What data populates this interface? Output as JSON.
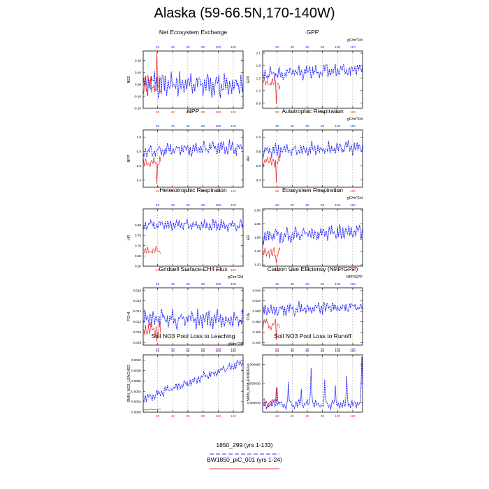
{
  "title": "Alaska (59-66.5N,170-140W)",
  "legend": [
    {
      "label": "1850_299 (yrs 1-133)",
      "color": "#3333ff",
      "dash": true
    },
    {
      "label": "BW1850_piC_001 (yrs 1-24)",
      "color": "#ff3333",
      "dash": false
    }
  ],
  "colors": {
    "series_a": "#1a1aff",
    "series_b": "#ee2222",
    "top_ticks": "#1a1aff",
    "bottom_ticks": "#ee2222",
    "ref_lines": "#999999"
  },
  "chart_data": [
    {
      "type": "line",
      "title": "Net Ecosystem Exchange",
      "units": "",
      "ylabel": "NEE",
      "ylim": [
        -0.2,
        0.28
      ],
      "yticks": [
        0.2,
        0.1,
        0.0,
        -0.1,
        -0.2
      ],
      "ytick_labels": [
        "0.20",
        "0.10",
        "0.00",
        "-0.10",
        "-0.20"
      ],
      "x_top_ticks": [
        20,
        40,
        60,
        80,
        100,
        120
      ],
      "x_bottom_ticks": [
        20,
        40,
        60,
        80,
        100,
        120
      ],
      "vlines": [
        20,
        40,
        60,
        80,
        100,
        120
      ],
      "series": [
        {
          "x_range": [
            1,
            133
          ],
          "base": 0.0,
          "amp": 0.09,
          "trend": 0.0,
          "phase": 0.0
        },
        {
          "x_range": [
            1,
            24
          ],
          "base": 0.0,
          "amp": 0.08,
          "trend": 0.0,
          "phase": 2.1,
          "spike": {
            "x": 19,
            "value": 0.27
          }
        }
      ]
    },
    {
      "type": "line",
      "title": "GPP",
      "units": "gC/m^2/d",
      "ylabel": "GPP",
      "ylim": [
        0.78,
        2.15
      ],
      "yticks": [
        2.1,
        1.8,
        1.5,
        1.2,
        0.9
      ],
      "ytick_labels": [
        "2.1",
        "1.8",
        "1.5",
        "1.2",
        "0.9"
      ],
      "x_top_ticks": [
        20,
        40,
        60,
        80,
        100,
        120
      ],
      "x_bottom_ticks": [
        20,
        40,
        60,
        80,
        100,
        120
      ],
      "vlines": [
        20,
        40,
        60,
        80,
        100,
        120
      ],
      "series": [
        {
          "x_range": [
            1,
            133
          ],
          "base": 1.6,
          "amp": 0.16,
          "trend": 0.1,
          "phase": 0.7
        },
        {
          "x_range": [
            1,
            24
          ],
          "base": 1.38,
          "amp": 0.12,
          "trend": 0.0,
          "phase": 3.0,
          "spike": {
            "x": 19,
            "value": 0.88
          }
        }
      ]
    },
    {
      "type": "line",
      "title": "NPP",
      "units": "",
      "ylabel": "NPP",
      "ylim": [
        0.3,
        1.1
      ],
      "yticks": [
        1.0,
        0.8,
        0.6,
        0.4
      ],
      "ytick_labels": [
        "1.0",
        "0.8",
        "0.6",
        "0.4"
      ],
      "x_top_ticks": [
        20,
        40,
        60,
        80,
        100,
        120
      ],
      "x_bottom_ticks": [
        20,
        40,
        60,
        80,
        100,
        120
      ],
      "vlines": [
        20,
        40,
        60,
        80,
        100,
        120
      ],
      "series": [
        {
          "x_range": [
            1,
            133
          ],
          "base": 0.8,
          "amp": 0.09,
          "trend": 0.06,
          "phase": 1.3
        },
        {
          "x_range": [
            1,
            24
          ],
          "base": 0.65,
          "amp": 0.07,
          "trend": 0.0,
          "phase": 0.4,
          "spike": {
            "x": 19,
            "value": 0.35
          }
        }
      ]
    },
    {
      "type": "line",
      "title": "Autotrophic Respiration",
      "units": "gC/m^2/d",
      "ylabel": "AR",
      "ylim": [
        0.3,
        1.1
      ],
      "yticks": [
        1.0,
        0.8,
        0.6,
        0.4
      ],
      "ytick_labels": [
        "1.0",
        "0.8",
        "0.6",
        "0.4"
      ],
      "x_top_ticks": [
        20,
        40,
        60,
        80,
        100,
        120
      ],
      "x_bottom_ticks": [
        20,
        40,
        60,
        80,
        100,
        120
      ],
      "vlines": [
        20,
        40,
        60,
        80,
        100,
        120
      ],
      "series": [
        {
          "x_range": [
            1,
            133
          ],
          "base": 0.8,
          "amp": 0.09,
          "trend": 0.06,
          "phase": 2.2
        },
        {
          "x_range": [
            1,
            24
          ],
          "base": 0.66,
          "amp": 0.07,
          "trend": 0.0,
          "phase": 1.5,
          "spike": {
            "x": 19,
            "value": 0.36
          }
        }
      ]
    },
    {
      "type": "line",
      "title": "Heterotrophic Respiration",
      "units": "",
      "ylabel": "HR",
      "ylim": [
        0.6,
        0.88
      ],
      "yticks": [
        0.8,
        0.75,
        0.7,
        0.65,
        0.6
      ],
      "ytick_labels": [
        "0.80",
        "0.75",
        "0.70",
        "0.65",
        "0.60"
      ],
      "x_top_ticks": [
        20,
        40,
        60,
        80,
        100,
        120
      ],
      "x_bottom_ticks": [
        20,
        40,
        60,
        80,
        100,
        120
      ],
      "vlines": [
        20,
        40,
        60,
        80,
        100,
        120
      ],
      "series": [
        {
          "x_range": [
            1,
            133
          ],
          "base": 0.8,
          "amp": 0.025,
          "trend": 0.0,
          "phase": 0.9
        },
        {
          "x_range": [
            1,
            24
          ],
          "base": 0.675,
          "amp": 0.018,
          "trend": 0.0,
          "phase": 2.6
        }
      ]
    },
    {
      "type": "line",
      "title": "Ecosystem Respiration",
      "units": "gC/m^2/d",
      "ylabel": "ER",
      "ylim": [
        1.18,
        2.02
      ],
      "yticks": [
        2.0,
        1.8,
        1.6,
        1.4,
        1.2
      ],
      "ytick_labels": [
        "2.00",
        "1.80",
        "1.60",
        "1.40",
        "1.20"
      ],
      "x_top_ticks": [
        20,
        40,
        60,
        80,
        100,
        120
      ],
      "x_bottom_ticks": [
        20,
        40,
        60,
        80,
        100,
        120
      ],
      "vlines": [
        20,
        40,
        60,
        80,
        100,
        120
      ],
      "series": [
        {
          "x_range": [
            1,
            133
          ],
          "base": 1.62,
          "amp": 0.1,
          "trend": 0.06,
          "phase": 1.8
        },
        {
          "x_range": [
            1,
            24
          ],
          "base": 1.38,
          "amp": 0.08,
          "trend": 0.0,
          "phase": 0.2,
          "spike": {
            "x": 19,
            "value": 1.22
          }
        }
      ]
    },
    {
      "type": "line",
      "title": "Gridcell Surface CH4 Flux",
      "units": "gC/m^2/d",
      "ylabel": "FCH4",
      "ylim": [
        0.0075,
        0.0185
      ],
      "yticks": [
        0.018,
        0.016,
        0.014,
        0.012,
        0.01,
        0.008
      ],
      "ytick_labels": [
        "0.018",
        "0.016",
        "0.014",
        "0.012",
        "0.010",
        "0.008"
      ],
      "x_top_ticks": [
        20,
        40,
        60,
        80,
        100,
        120
      ],
      "x_bottom_ticks": [
        20,
        40,
        60,
        80,
        100,
        120
      ],
      "vlines": [
        20,
        40,
        60,
        80,
        100,
        120
      ],
      "series": [
        {
          "x_range": [
            1,
            133
          ],
          "base": 0.0125,
          "amp": 0.0017,
          "trend": 0.0,
          "phase": 2.9
        },
        {
          "x_range": [
            1,
            24
          ],
          "base": 0.0105,
          "amp": 0.0015,
          "trend": 0.0,
          "phase": 1.1,
          "spike": {
            "x": 19,
            "value": 0.0082
          }
        }
      ]
    },
    {
      "type": "line",
      "title": "Carbon Use Efficiency (NPP/GPP)",
      "units": "NPP/GPP",
      "ylabel": "CUE",
      "ylim": [
        0.435,
        0.545
      ],
      "yticks": [
        0.54,
        0.52,
        0.5,
        0.48,
        0.46,
        0.44
      ],
      "ytick_labels": [
        "0.540",
        "0.520",
        "0.500",
        "0.480",
        "0.460",
        "0.440"
      ],
      "x_top_ticks": [
        20,
        40,
        60,
        80,
        100,
        120
      ],
      "x_bottom_ticks": [
        20,
        40,
        60,
        80,
        100,
        120
      ],
      "vlines": [
        20,
        40,
        60,
        80,
        100,
        120
      ],
      "series": [
        {
          "x_range": [
            1,
            133
          ],
          "base": 0.5,
          "amp": 0.012,
          "trend": 0.01,
          "phase": 0.3
        },
        {
          "x_range": [
            1,
            24
          ],
          "base": 0.475,
          "amp": 0.012,
          "trend": 0.0,
          "phase": 2.4,
          "spike": {
            "x": 19,
            "value": 0.445
          }
        }
      ]
    },
    {
      "type": "line",
      "title": "Soil NO3 Pool Loss to Leaching",
      "units": "gN/m^2/d",
      "ylabel": "SMIN_NO3_LEACHED",
      "ylim": [
        0.0,
        0.0011
      ],
      "yticks": [
        0.001,
        0.0008,
        0.0006,
        0.0004,
        0.0002,
        0.0
      ],
      "ytick_labels": [
        "0.0010",
        "0.0008",
        "0.0006",
        "0.0004",
        "0.0002",
        "0.0000"
      ],
      "x_top_ticks": [
        20,
        40,
        60,
        80,
        100,
        120
      ],
      "x_bottom_ticks": [
        20,
        40,
        60,
        80,
        100,
        120
      ],
      "vlines": [
        20,
        40,
        60,
        80,
        100,
        120
      ],
      "series": [
        {
          "x_range": [
            1,
            133
          ],
          "base": 0.00025,
          "amp": 8e-05,
          "trend": 0.0007,
          "phase": 1.7
        },
        {
          "x_range": [
            1,
            24
          ],
          "base": 5e-05,
          "amp": 1e-05,
          "trend": 0.0,
          "phase": 0.8
        }
      ]
    },
    {
      "type": "line",
      "title": "Soil NO3 Pool Loss to Runoff",
      "units": "",
      "ylabel": "SMIN_NO3_RUNOFF",
      "ylim": [
        0.0,
        6e-05
      ],
      "yticks": [
        5e-05,
        3e-05,
        1e-05
      ],
      "ytick_labels": [
        "0.000050",
        "0.000030",
        "0.000010"
      ],
      "x_top_ticks": [
        20,
        40,
        60,
        80,
        100,
        120
      ],
      "x_bottom_ticks": [
        20,
        40,
        60,
        80,
        100,
        120
      ],
      "vlines": [
        20,
        40,
        60,
        80,
        100,
        120
      ],
      "series": [
        {
          "x_range": [
            1,
            133
          ],
          "base": 8e-06,
          "amp": 4e-06,
          "trend": 0.0,
          "phase": 0.5,
          "peaks": [
            [
              20,
              2.6e-05
            ],
            [
              35,
              3.2e-05
            ],
            [
              52,
              2.4e-05
            ],
            [
              65,
              4.6e-05
            ],
            [
              83,
              3.4e-05
            ],
            [
              97,
              2.8e-05
            ],
            [
              112,
              3.8e-05
            ],
            [
              132,
              5.8e-05
            ]
          ]
        },
        {
          "x_range": [
            1,
            24
          ],
          "base": 1e-05,
          "amp": 4e-06,
          "trend": 0.0,
          "phase": 3.3,
          "spike": {
            "x": 19,
            "value": 2.6e-05
          }
        }
      ]
    }
  ]
}
